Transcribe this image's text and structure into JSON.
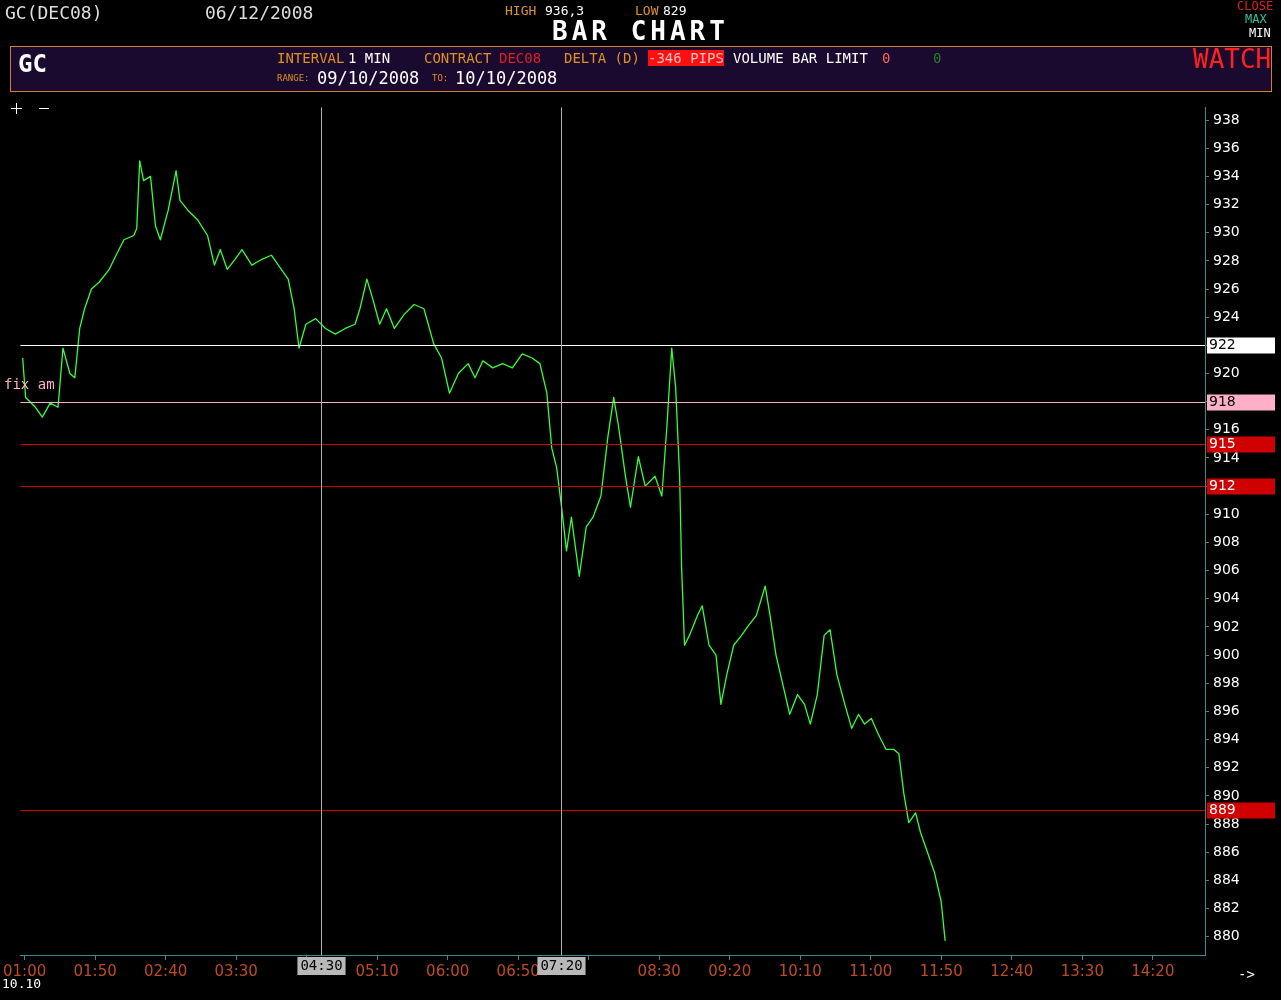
{
  "chart_data": {
    "type": "line",
    "title": "BAR CHART",
    "annotations": [
      "GC(DEC08)",
      "06/12/2008",
      "HIGH",
      "936,3",
      "LOW",
      "829",
      "CLOSE",
      "MAX",
      "MIN",
      "GC",
      "INTERVAL",
      "1 MIN",
      "CONTRACT",
      "DEC08",
      "DELTA (D)",
      "-346 PIPS",
      "VOLUME BAR LIMIT",
      "0",
      "0",
      "WATCH",
      "RANGE:",
      "09/10/2008",
      "TO:",
      "10/10/2008",
      "10.10",
      "->",
      "fix am"
    ],
    "x": [
      0.977,
      1.012,
      1.128,
      1.209,
      1.302,
      1.395,
      1.453,
      1.535,
      1.593,
      1.651,
      1.709,
      1.79,
      1.883,
      2.0,
      2.081,
      2.174,
      2.29,
      2.325,
      2.36,
      2.406,
      2.488,
      2.546,
      2.604,
      2.697,
      2.79,
      2.836,
      2.929,
      3.046,
      3.162,
      3.243,
      3.313,
      3.394,
      3.487,
      3.569,
      3.685,
      3.801,
      3.917,
      4.033,
      4.115,
      4.185,
      4.243,
      4.324,
      4.44,
      4.556,
      4.673,
      4.789,
      4.905,
      4.963,
      5.045,
      5.114,
      5.196,
      5.277,
      5.37,
      5.486,
      5.603,
      5.719,
      5.835,
      5.928,
      6.021,
      6.126,
      6.242,
      6.323,
      6.416,
      6.532,
      6.649,
      6.765,
      6.881,
      6.997,
      7.09,
      7.172,
      7.23,
      7.288,
      7.346,
      7.404,
      7.462,
      7.555,
      7.637,
      7.718,
      7.811,
      7.893,
      7.962,
      8.02,
      8.101,
      8.16,
      8.253,
      8.334,
      8.45,
      8.531,
      8.59,
      8.648,
      8.694,
      8.741,
      8.764,
      8.799,
      8.857,
      8.95,
      9.008,
      9.089,
      9.171,
      9.229,
      9.298,
      9.38,
      9.473,
      9.554,
      9.647,
      9.752,
      9.81,
      9.88,
      9.961,
      10.042,
      10.135,
      10.217,
      10.286,
      10.368,
      10.449,
      10.519,
      10.6,
      10.693,
      10.775,
      10.856,
      10.926,
      11.007,
      11.088,
      11.181,
      11.274,
      11.332,
      11.39,
      11.449,
      11.53,
      11.588,
      11.67,
      11.751,
      11.832,
      11.879
    ],
    "series": [
      {
        "color": "#33ff33",
        "values": [
          921.1,
          918.3,
          917.6,
          916.9,
          917.9,
          917.6,
          921.8,
          920,
          919.7,
          923.2,
          924.6,
          926,
          926.5,
          927.4,
          928.4,
          929.5,
          929.8,
          930.3,
          935.1,
          933.7,
          934,
          930.5,
          929.5,
          931.6,
          934.4,
          932.3,
          931.6,
          930.9,
          929.8,
          927.7,
          928.8,
          927.4,
          928.1,
          928.8,
          927.7,
          928.1,
          928.4,
          927.4,
          926.7,
          924.6,
          921.8,
          923.5,
          923.9,
          923.2,
          922.8,
          923.2,
          923.5,
          924.6,
          926.7,
          925.3,
          923.5,
          924.6,
          923.2,
          924.2,
          924.9,
          924.6,
          922.1,
          921.1,
          918.6,
          920,
          920.7,
          919.7,
          920.9,
          920.4,
          920.7,
          920.4,
          921.4,
          921.1,
          920.7,
          918.6,
          914.7,
          913.3,
          910.5,
          907.4,
          909.8,
          905.6,
          909.1,
          909.8,
          911.3,
          915.5,
          918.3,
          916.2,
          912.7,
          910.5,
          914.1,
          912,
          912.7,
          911.3,
          916.2,
          921.8,
          919,
          912.7,
          906.3,
          900.7,
          901.4,
          902.8,
          903.5,
          900.7,
          900,
          896.5,
          898.6,
          900.7,
          901.4,
          902.1,
          902.8,
          904.9,
          902.8,
          900,
          897.9,
          895.8,
          897.2,
          896.5,
          895.1,
          897.2,
          901.4,
          901.8,
          898.6,
          896.5,
          894.8,
          895.8,
          895.1,
          895.5,
          894.4,
          893.3,
          893.3,
          893,
          890.2,
          888.1,
          888.8,
          887.4,
          886,
          884.6,
          882.5,
          879.7
        ]
      }
    ],
    "xlim": [
      0.95,
      14.95
    ],
    "xticks": [
      {
        "value": 1.0,
        "label": "01:00"
      },
      {
        "value": 1.8333,
        "label": "01:50"
      },
      {
        "value": 2.6667,
        "label": "02:40"
      },
      {
        "value": 3.5,
        "label": "03:30"
      },
      {
        "value": 4.3333,
        "label": null
      },
      {
        "value": 5.1667,
        "label": "05:10"
      },
      {
        "value": 6.0,
        "label": "06:00"
      },
      {
        "value": 6.8333,
        "label": "06:50"
      },
      {
        "value": 7.6667,
        "label": null
      },
      {
        "value": 8.5,
        "label": "08:30"
      },
      {
        "value": 9.3333,
        "label": "09:20"
      },
      {
        "value": 10.1667,
        "label": "10:10"
      },
      {
        "value": 11.0,
        "label": "11:00"
      },
      {
        "value": 11.8333,
        "label": "11:50"
      },
      {
        "value": 12.6667,
        "label": "12:40"
      },
      {
        "value": 13.5,
        "label": "13:30"
      },
      {
        "value": 14.3333,
        "label": "14:20"
      }
    ],
    "ylim": [
      878.7,
      938.9
    ],
    "yticks": [
      880,
      882,
      884,
      886,
      888,
      890,
      892,
      894,
      896,
      898,
      900,
      902,
      904,
      906,
      908,
      910,
      912,
      914,
      916,
      918,
      920,
      922,
      924,
      926,
      928,
      930,
      932,
      934,
      936,
      938
    ],
    "ref_lines": [
      {
        "axis": "y",
        "value": 922,
        "label": "922",
        "color": "#ffffff"
      },
      {
        "axis": "y",
        "value": 918,
        "label": "918",
        "color": "#ffb0c8"
      },
      {
        "axis": "y",
        "value": 915,
        "label": "915",
        "color": "#d00000"
      },
      {
        "axis": "y",
        "value": 912,
        "label": "912",
        "color": "#d00000"
      },
      {
        "axis": "y",
        "value": 889,
        "label": "889",
        "color": "#d00000"
      },
      {
        "axis": "x",
        "value": 4.5,
        "label": "04:30",
        "color": "#b0b0b0"
      },
      {
        "axis": "x",
        "value": 7.3333,
        "label": "07:20",
        "color": "#b0b0b0"
      }
    ],
    "grid": false,
    "legend": false,
    "marker": "none",
    "line_style": "solid"
  }
}
